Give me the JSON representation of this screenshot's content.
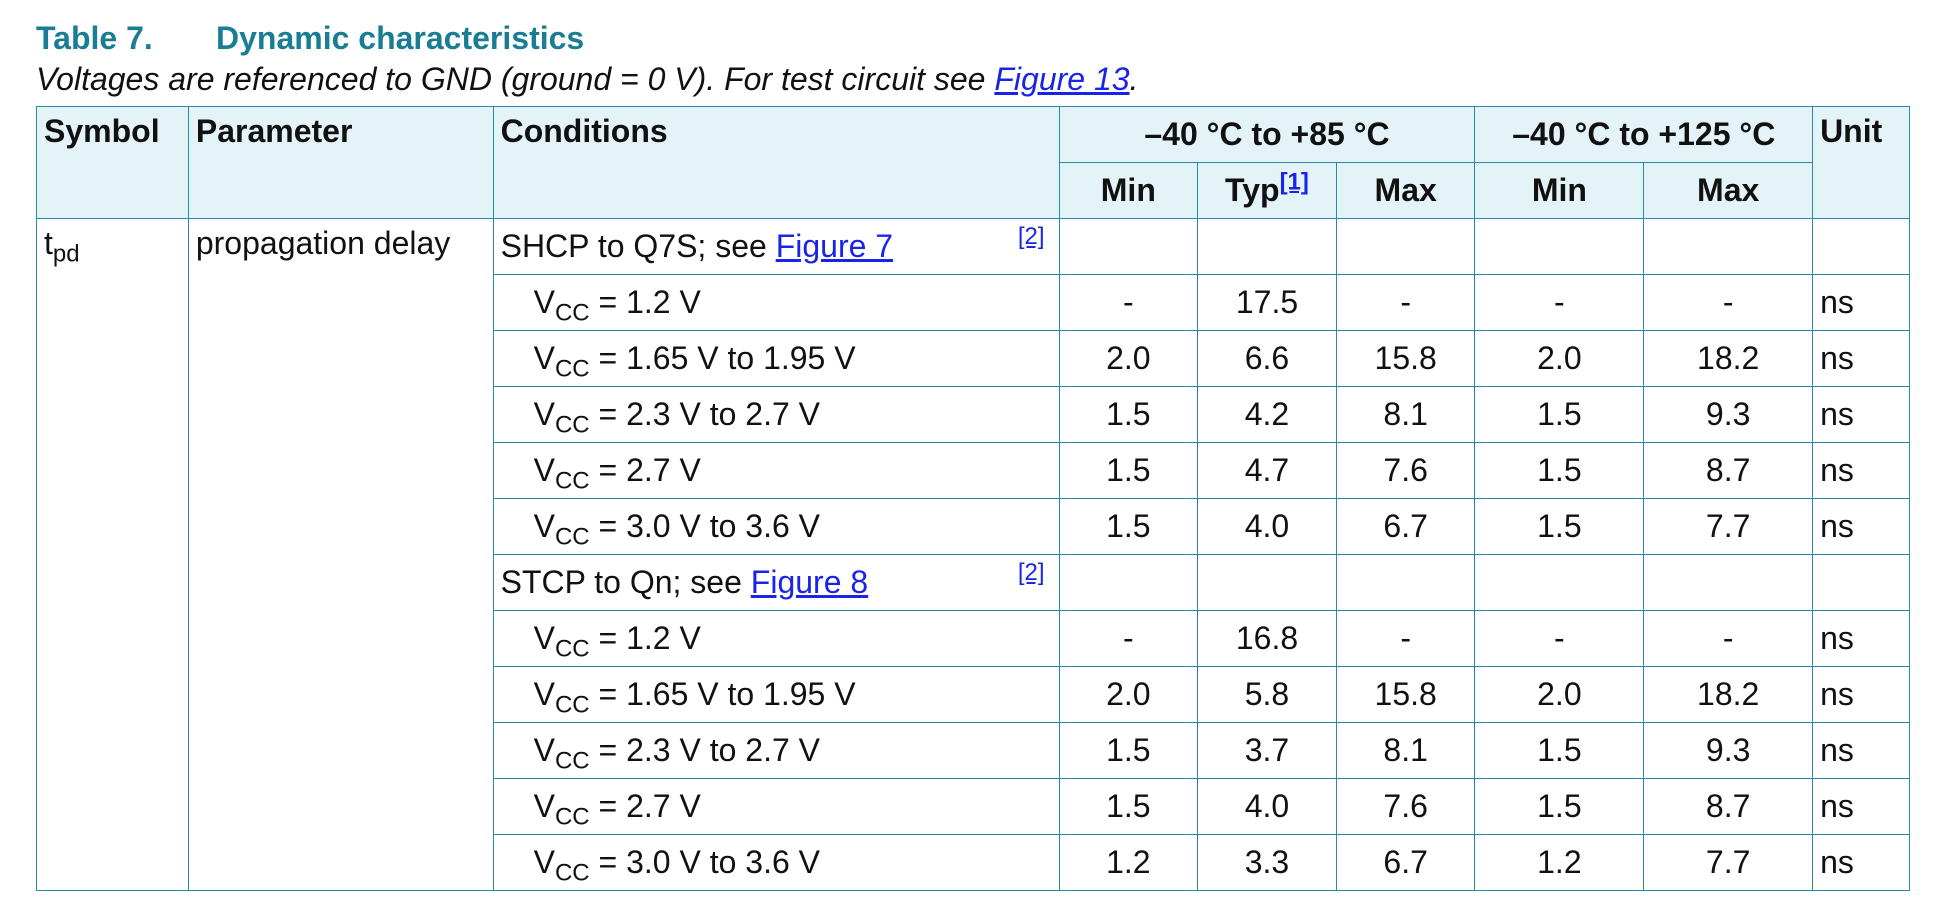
{
  "table": {
    "label": "Table 7.",
    "title": "Dynamic characteristics",
    "caption_text": "Voltages are referenced to GND (ground = 0 V). For test circuit see ",
    "caption_link": "Figure 13",
    "caption_end": "."
  },
  "header": {
    "symbol": "Symbol",
    "parameter": "Parameter",
    "conditions": "Conditions",
    "range_85": "–40 °C to +85 °C",
    "range_125": "–40 °C to +125 °C",
    "unit": "Unit",
    "min": "Min",
    "typ": "Typ",
    "typ_note": "[1]",
    "max": "Max",
    "min2": "Min",
    "max2": "Max"
  },
  "param": {
    "symbol_main": "t",
    "symbol_sub": "pd",
    "name": "propagation delay"
  },
  "groups": [
    {
      "heading": "SHCP to Q7S; see ",
      "link": "Figure 7",
      "note": "[2]",
      "rows": [
        {
          "vcc_pre": "V",
          "vcc_sub": "CC",
          "cond": " = 1.2 V",
          "min85": "-",
          "typ": "17.5",
          "max85": "-",
          "min125": "-",
          "max125": "-",
          "unit": "ns"
        },
        {
          "vcc_pre": "V",
          "vcc_sub": "CC",
          "cond": " = 1.65 V to 1.95 V",
          "min85": "2.0",
          "typ": "6.6",
          "max85": "15.8",
          "min125": "2.0",
          "max125": "18.2",
          "unit": "ns"
        },
        {
          "vcc_pre": "V",
          "vcc_sub": "CC",
          "cond": " = 2.3 V to 2.7 V",
          "min85": "1.5",
          "typ": "4.2",
          "max85": "8.1",
          "min125": "1.5",
          "max125": "9.3",
          "unit": "ns"
        },
        {
          "vcc_pre": "V",
          "vcc_sub": "CC",
          "cond": " = 2.7 V",
          "min85": "1.5",
          "typ": "4.7",
          "max85": "7.6",
          "min125": "1.5",
          "max125": "8.7",
          "unit": "ns"
        },
        {
          "vcc_pre": "V",
          "vcc_sub": "CC",
          "cond": " = 3.0 V to 3.6 V",
          "min85": "1.5",
          "typ": "4.0",
          "max85": "6.7",
          "min125": "1.5",
          "max125": "7.7",
          "unit": "ns"
        }
      ]
    },
    {
      "heading": "STCP to Qn; see ",
      "link": "Figure 8",
      "note": "[2]",
      "rows": [
        {
          "vcc_pre": "V",
          "vcc_sub": "CC",
          "cond": " = 1.2 V",
          "min85": "-",
          "typ": "16.8",
          "max85": "-",
          "min125": "-",
          "max125": "-",
          "unit": "ns"
        },
        {
          "vcc_pre": "V",
          "vcc_sub": "CC",
          "cond": " = 1.65 V to 1.95 V",
          "min85": "2.0",
          "typ": "5.8",
          "max85": "15.8",
          "min125": "2.0",
          "max125": "18.2",
          "unit": "ns"
        },
        {
          "vcc_pre": "V",
          "vcc_sub": "CC",
          "cond": " = 2.3 V to 2.7 V",
          "min85": "1.5",
          "typ": "3.7",
          "max85": "8.1",
          "min125": "1.5",
          "max125": "9.3",
          "unit": "ns"
        },
        {
          "vcc_pre": "V",
          "vcc_sub": "CC",
          "cond": " = 2.7 V",
          "min85": "1.5",
          "typ": "4.0",
          "max85": "7.6",
          "min125": "1.5",
          "max125": "8.7",
          "unit": "ns"
        },
        {
          "vcc_pre": "V",
          "vcc_sub": "CC",
          "cond": " = 3.0 V to 3.6 V",
          "min85": "1.2",
          "typ": "3.3",
          "max85": "6.7",
          "min125": "1.2",
          "max125": "7.7",
          "unit": "ns"
        }
      ]
    }
  ],
  "colors": {
    "title": "#1a7d93",
    "header_bg": "#e3f3f7",
    "border": "#2a8aa0",
    "link": "#1a24e8"
  }
}
